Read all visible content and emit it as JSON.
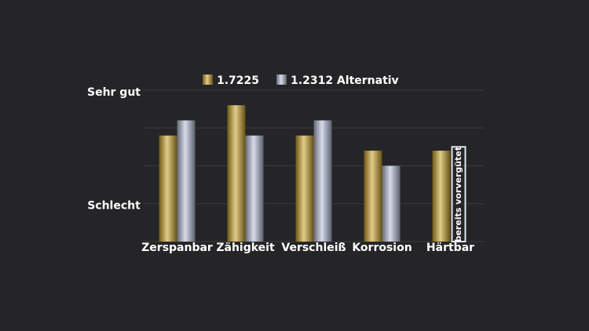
{
  "chart_data": {
    "type": "bar",
    "categories": [
      "Zerspanbar",
      "Zähigkeit",
      "Verschleiß",
      "Korrosion",
      "Härtbar"
    ],
    "series": [
      {
        "name": "1.7225",
        "color": "#c9a227",
        "values": [
          2.8,
          3.6,
          2.8,
          2.4,
          2.4
        ]
      },
      {
        "name": "1.2312  Alternativ",
        "color": "#b8bfd8",
        "values": [
          3.2,
          2.8,
          3.2,
          2.0,
          null
        ]
      }
    ],
    "annotations": [
      {
        "text": "bereits vorvergütet",
        "category": 4,
        "value": 2.5
      }
    ],
    "ylim": [
      0,
      4.1
    ],
    "yticks": [
      {
        "value": 1,
        "label": "Schlecht"
      },
      {
        "value": 4,
        "label": "Sehr gut"
      }
    ],
    "gridlines": [
      1,
      2,
      3,
      4
    ],
    "grid": true
  }
}
